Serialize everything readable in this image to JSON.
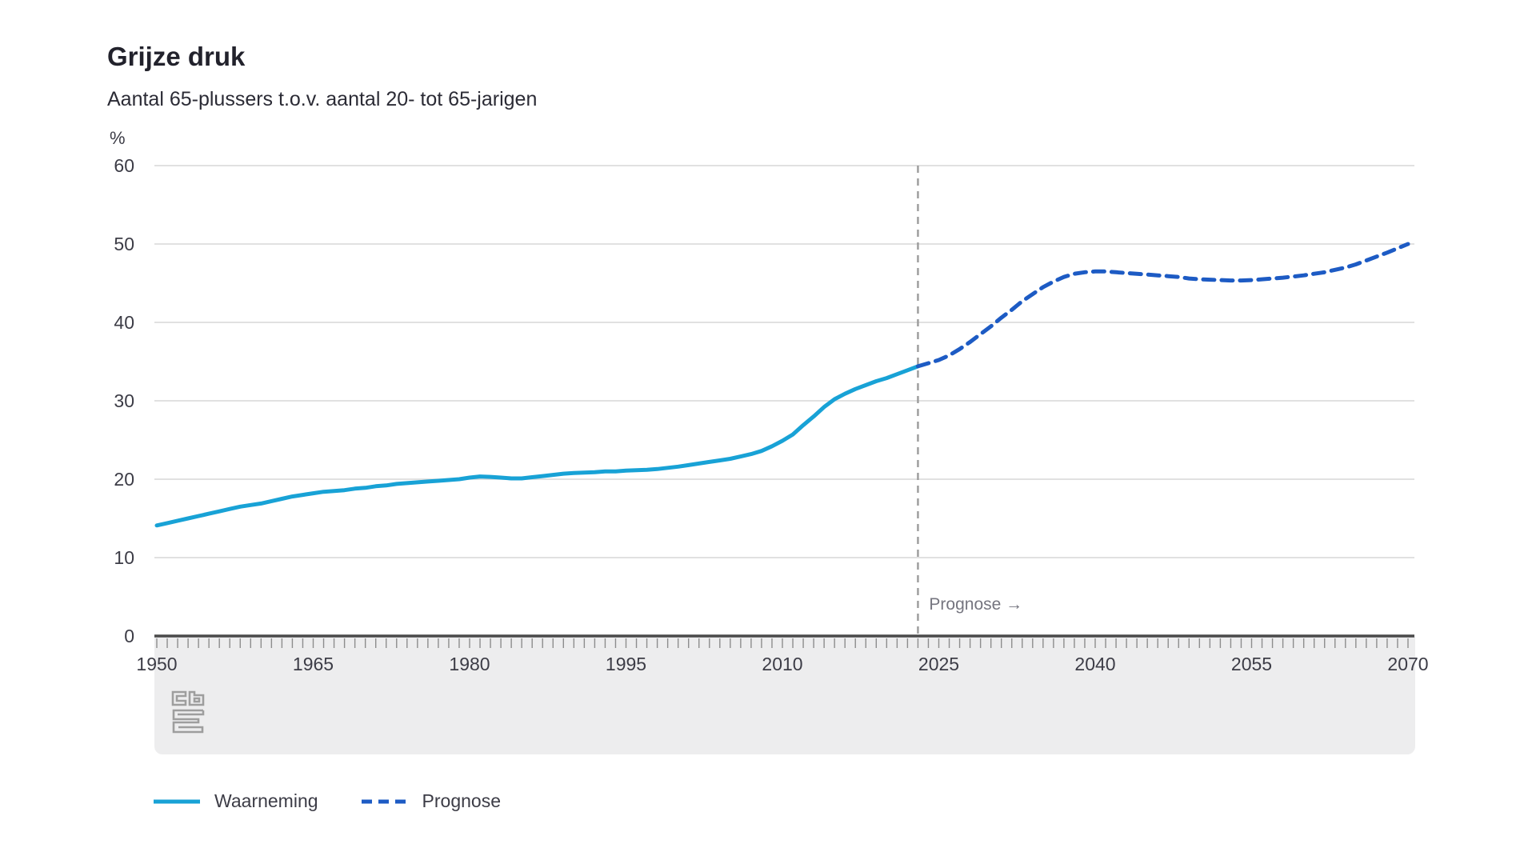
{
  "header": {
    "title": "Grijze druk",
    "subtitle": "Aantal 65-plussers t.o.v. aantal 20- tot 65-jarigen"
  },
  "chart_data": {
    "type": "line",
    "unit": "%",
    "x_axis": {
      "min": 1950,
      "max": 2070,
      "minor_tick_interval": 1,
      "labels": [
        1950,
        1965,
        1980,
        1995,
        2010,
        2025,
        2040,
        2055,
        2070
      ]
    },
    "y_axis": {
      "min": 0,
      "max": 60,
      "tick_interval": 10,
      "labels": [
        0,
        10,
        20,
        30,
        40,
        50,
        60
      ]
    },
    "annotation": {
      "label": "Prognose →",
      "x": 2023
    },
    "colors": {
      "waarneming": "#18a2d6",
      "prognose": "#1d5bc4",
      "gridline": "#d7d7d7",
      "axis": "#4a4a4a",
      "tick": "#8d8d8d",
      "band": "#ededee",
      "annotation_line": "#9b9b9b",
      "annotation_text": "#75757f",
      "text": "#3c3c46",
      "logo": "#9e9e9e"
    },
    "series": [
      {
        "name": "Waarneming",
        "style": "solid",
        "color": "#18a2d6",
        "points": [
          [
            1950,
            14.1
          ],
          [
            1951,
            14.4
          ],
          [
            1952,
            14.7
          ],
          [
            1953,
            15.0
          ],
          [
            1954,
            15.3
          ],
          [
            1955,
            15.6
          ],
          [
            1956,
            15.9
          ],
          [
            1957,
            16.2
          ],
          [
            1958,
            16.5
          ],
          [
            1959,
            16.7
          ],
          [
            1960,
            16.9
          ],
          [
            1961,
            17.2
          ],
          [
            1962,
            17.5
          ],
          [
            1963,
            17.8
          ],
          [
            1964,
            18.0
          ],
          [
            1965,
            18.2
          ],
          [
            1966,
            18.4
          ],
          [
            1967,
            18.5
          ],
          [
            1968,
            18.6
          ],
          [
            1969,
            18.8
          ],
          [
            1970,
            18.9
          ],
          [
            1971,
            19.1
          ],
          [
            1972,
            19.2
          ],
          [
            1973,
            19.4
          ],
          [
            1974,
            19.5
          ],
          [
            1975,
            19.6
          ],
          [
            1976,
            19.7
          ],
          [
            1977,
            19.8
          ],
          [
            1978,
            19.9
          ],
          [
            1979,
            20.0
          ],
          [
            1980,
            20.2
          ],
          [
            1981,
            20.35
          ],
          [
            1982,
            20.3
          ],
          [
            1983,
            20.2
          ],
          [
            1984,
            20.1
          ],
          [
            1985,
            20.1
          ],
          [
            1986,
            20.25
          ],
          [
            1987,
            20.4
          ],
          [
            1988,
            20.55
          ],
          [
            1989,
            20.7
          ],
          [
            1990,
            20.8
          ],
          [
            1991,
            20.85
          ],
          [
            1992,
            20.9
          ],
          [
            1993,
            21.0
          ],
          [
            1994,
            21.0
          ],
          [
            1995,
            21.1
          ],
          [
            1996,
            21.15
          ],
          [
            1997,
            21.2
          ],
          [
            1998,
            21.3
          ],
          [
            1999,
            21.45
          ],
          [
            2000,
            21.6
          ],
          [
            2001,
            21.8
          ],
          [
            2002,
            22.0
          ],
          [
            2003,
            22.2
          ],
          [
            2004,
            22.4
          ],
          [
            2005,
            22.6
          ],
          [
            2006,
            22.9
          ],
          [
            2007,
            23.2
          ],
          [
            2008,
            23.6
          ],
          [
            2009,
            24.2
          ],
          [
            2010,
            24.9
          ],
          [
            2011,
            25.7
          ],
          [
            2012,
            26.9
          ],
          [
            2013,
            28.0
          ],
          [
            2014,
            29.2
          ],
          [
            2015,
            30.2
          ],
          [
            2016,
            30.9
          ],
          [
            2017,
            31.5
          ],
          [
            2018,
            32.0
          ],
          [
            2019,
            32.5
          ],
          [
            2020,
            32.9
          ],
          [
            2021,
            33.4
          ],
          [
            2022,
            33.9
          ],
          [
            2023,
            34.4
          ]
        ]
      },
      {
        "name": "Prognose",
        "style": "dashed",
        "color": "#1d5bc4",
        "points": [
          [
            2023,
            34.4
          ],
          [
            2024,
            34.8
          ],
          [
            2025,
            35.2
          ],
          [
            2026,
            35.8
          ],
          [
            2027,
            36.6
          ],
          [
            2028,
            37.5
          ],
          [
            2029,
            38.5
          ],
          [
            2030,
            39.5
          ],
          [
            2031,
            40.6
          ],
          [
            2032,
            41.6
          ],
          [
            2033,
            42.7
          ],
          [
            2034,
            43.6
          ],
          [
            2035,
            44.5
          ],
          [
            2036,
            45.2
          ],
          [
            2037,
            45.8
          ],
          [
            2038,
            46.2
          ],
          [
            2039,
            46.4
          ],
          [
            2040,
            46.5
          ],
          [
            2041,
            46.5
          ],
          [
            2042,
            46.4
          ],
          [
            2043,
            46.3
          ],
          [
            2044,
            46.2
          ],
          [
            2045,
            46.1
          ],
          [
            2046,
            46.0
          ],
          [
            2047,
            45.9
          ],
          [
            2048,
            45.8
          ],
          [
            2049,
            45.6
          ],
          [
            2050,
            45.5
          ],
          [
            2051,
            45.45
          ],
          [
            2052,
            45.4
          ],
          [
            2053,
            45.35
          ],
          [
            2054,
            45.35
          ],
          [
            2055,
            45.4
          ],
          [
            2056,
            45.5
          ],
          [
            2057,
            45.6
          ],
          [
            2058,
            45.7
          ],
          [
            2059,
            45.85
          ],
          [
            2060,
            46.0
          ],
          [
            2061,
            46.2
          ],
          [
            2062,
            46.4
          ],
          [
            2063,
            46.7
          ],
          [
            2064,
            47.0
          ],
          [
            2065,
            47.4
          ],
          [
            2066,
            47.9
          ],
          [
            2067,
            48.4
          ],
          [
            2068,
            48.9
          ],
          [
            2069,
            49.45
          ],
          [
            2070,
            50.0
          ]
        ]
      }
    ]
  }
}
